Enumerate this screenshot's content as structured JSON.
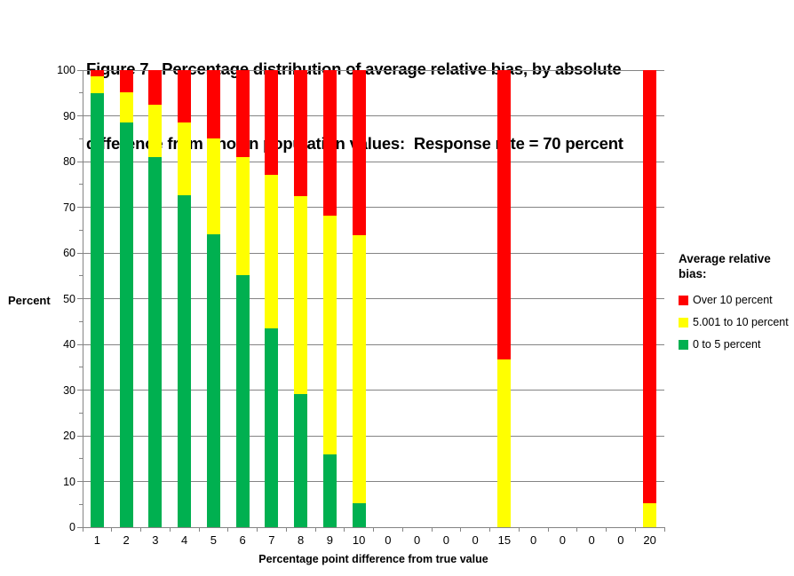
{
  "title": {
    "line1": "Figure 7.  Percentage distribution of average relative bias, by absolute",
    "line2": "difference from known population values:  Response rate = 70 percent"
  },
  "y_axis": {
    "label": "Percent",
    "major_ticks": [
      0,
      10,
      20,
      30,
      40,
      50,
      60,
      70,
      80,
      90,
      100
    ],
    "minor_tick_step": 5
  },
  "x_axis": {
    "label": "Percentage point difference from true value",
    "categories": [
      "1",
      "2",
      "3",
      "4",
      "5",
      "6",
      "7",
      "8",
      "9",
      "10",
      "0",
      "0",
      "0",
      "0",
      "15",
      "0",
      "0",
      "0",
      "0",
      "20"
    ]
  },
  "legend": {
    "title_line1": "Average relative",
    "title_line2": "bias:",
    "items": [
      {
        "label": "Over 10 percent",
        "color": "#FF0000"
      },
      {
        "label": "5.001 to 10 percent",
        "color": "#FFFF00"
      },
      {
        "label": "0 to 5 percent",
        "color": "#00B050"
      }
    ]
  },
  "chart_data": {
    "type": "bar",
    "stacked": true,
    "title": "Figure 7.  Percentage distribution of average relative bias, by absolute difference from known population values:  Response rate = 70 percent",
    "xlabel": "Percentage point difference from true value",
    "ylabel": "Percent",
    "ylim": [
      0,
      100
    ],
    "grid": "horizontal",
    "legend_position": "right",
    "categories": [
      "1",
      "2",
      "3",
      "4",
      "5",
      "6",
      "7",
      "8",
      "9",
      "10",
      "0",
      "0",
      "0",
      "0",
      "15",
      "0",
      "0",
      "0",
      "0",
      "20"
    ],
    "series": [
      {
        "name": "0 to 5 percent",
        "color": "#00B050",
        "values": [
          95,
          88.5,
          81,
          72.6,
          64,
          55.1,
          43.5,
          29.1,
          16,
          5.3,
          0,
          0,
          0,
          0,
          0,
          0,
          0,
          0,
          0,
          0
        ]
      },
      {
        "name": "5.001 to 10 percent",
        "color": "#FFFF00",
        "values": [
          3.7,
          6.6,
          11.4,
          15.9,
          21,
          25.8,
          33.5,
          43.4,
          52.2,
          58.6,
          0,
          0,
          0,
          0,
          36.7,
          0,
          0,
          0,
          0,
          5.3
        ]
      },
      {
        "name": "Over 10 percent",
        "color": "#FF0000",
        "values": [
          1.3,
          4.9,
          7.6,
          11.5,
          15,
          19.1,
          23,
          27.5,
          31.8,
          36.1,
          0,
          0,
          0,
          0,
          63.3,
          0,
          0,
          0,
          0,
          94.7
        ]
      }
    ]
  },
  "colors": {
    "gridline": "#848484",
    "axis": "#848484",
    "text": "#000000",
    "background": "#ffffff"
  }
}
